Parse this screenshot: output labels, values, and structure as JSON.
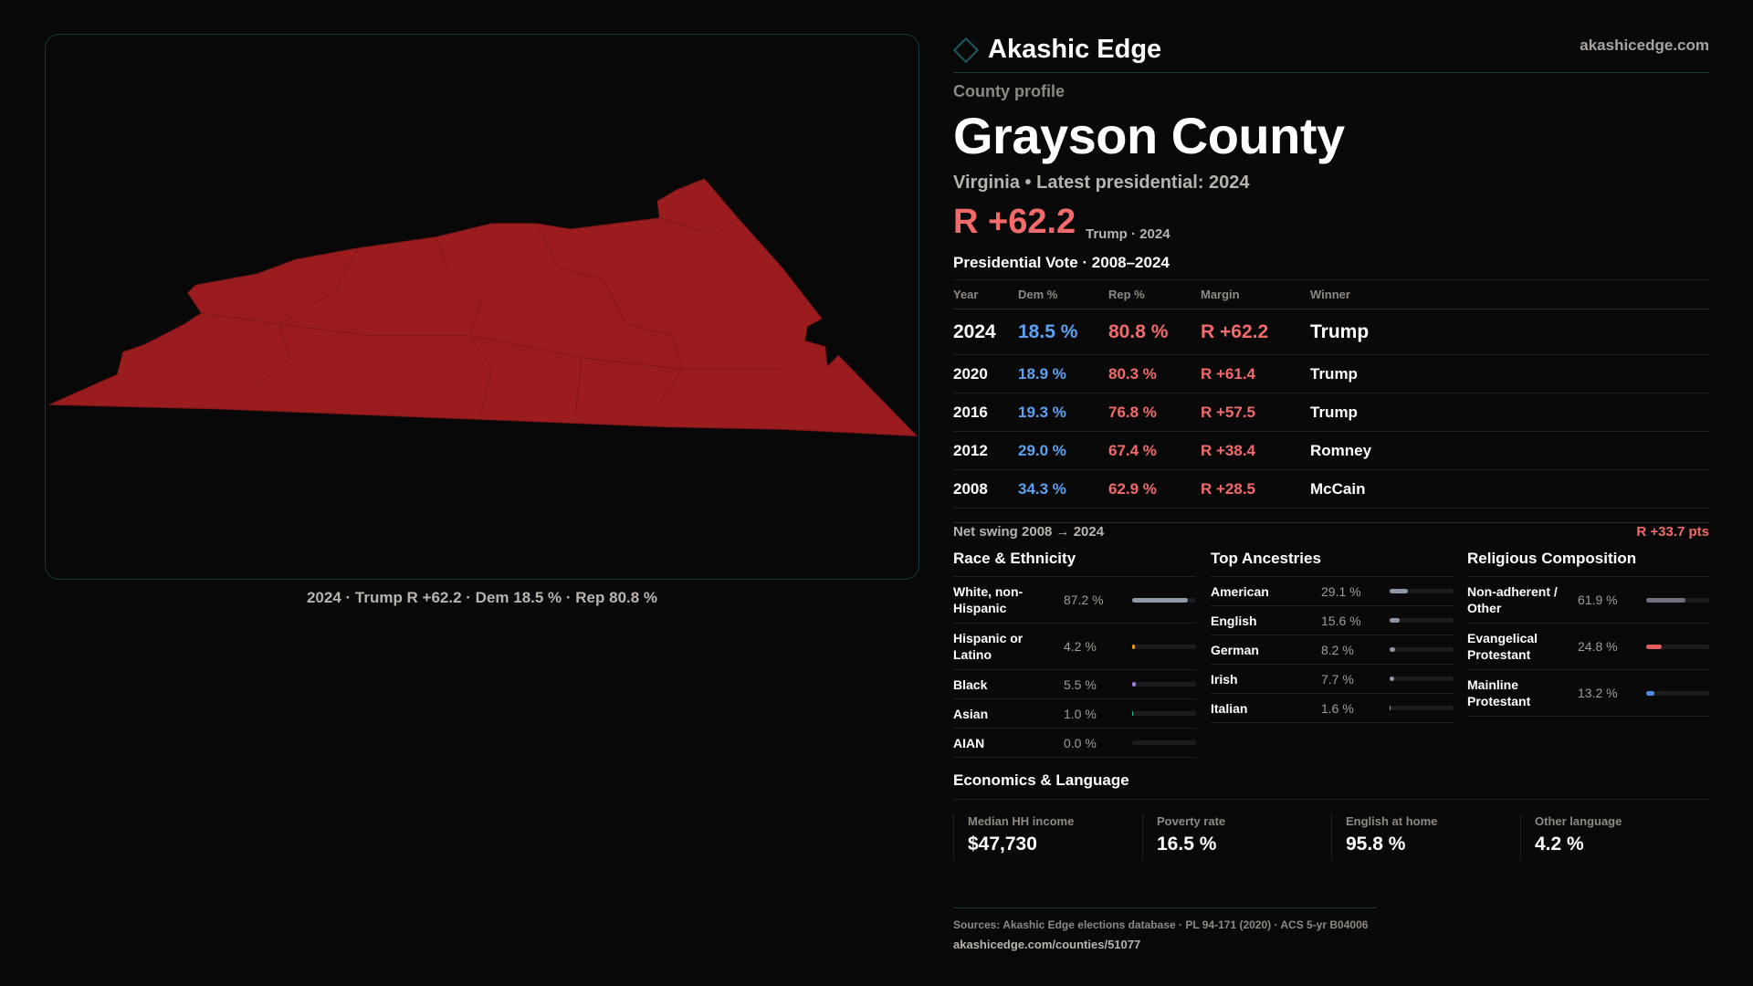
{
  "brand": {
    "name": "Akashic Edge",
    "site": "akashicedge.com"
  },
  "map": {
    "caption": "2024 · Trump R +62.2 · Dem 18.5 % · Rep 80.8 %",
    "fill": "#9b1c1f"
  },
  "profile": {
    "kicker": "County profile",
    "title": "Grayson County",
    "subtitle": "Virginia • Latest presidential: 2024",
    "margin": "R +62.2",
    "margin_sub": "Trump · 2024"
  },
  "pres": {
    "title": "Presidential Vote · 2008–2024",
    "headers": [
      "Year",
      "Dem %",
      "Rep %",
      "Margin",
      "Winner"
    ],
    "rows": [
      [
        "2024",
        "18.5 %",
        "80.8 %",
        "R +62.2",
        "Trump"
      ],
      [
        "2020",
        "18.9 %",
        "80.3 %",
        "R +61.4",
        "Trump"
      ],
      [
        "2016",
        "19.3 %",
        "76.8 %",
        "R +57.5",
        "Trump"
      ],
      [
        "2012",
        "29.0 %",
        "67.4 %",
        "R +38.4",
        "Romney"
      ],
      [
        "2008",
        "34.3 %",
        "62.9 %",
        "R +28.5",
        "McCain"
      ]
    ]
  },
  "swing": {
    "label": "Net swing 2008 → 2024",
    "value": "R +33.7 pts"
  },
  "race": {
    "title": "Race & Ethnicity",
    "items": [
      {
        "label": "White, non-Hispanic",
        "value": "87.2 %",
        "pct": 87.2,
        "color": "#8d97a8"
      },
      {
        "label": "Hispanic or Latino",
        "value": "4.2 %",
        "pct": 4.2,
        "color": "#e59a1c"
      },
      {
        "label": "Black",
        "value": "5.5 %",
        "pct": 5.5,
        "color": "#9a7ae0"
      },
      {
        "label": "Asian",
        "value": "1.0 %",
        "pct": 1.0,
        "color": "#3ab89a"
      },
      {
        "label": "AIAN",
        "value": "0.0 %",
        "pct": 0,
        "color": "#888"
      }
    ]
  },
  "ancestry": {
    "title": "Top Ancestries",
    "items": [
      {
        "label": "American",
        "value": "29.1 %",
        "pct": 29.1,
        "color": "#8d97a8"
      },
      {
        "label": "English",
        "value": "15.6 %",
        "pct": 15.6,
        "color": "#8d97a8"
      },
      {
        "label": "German",
        "value": "8.2 %",
        "pct": 8.2,
        "color": "#8d97a8"
      },
      {
        "label": "Irish",
        "value": "7.7 %",
        "pct": 7.7,
        "color": "#8d97a8"
      },
      {
        "label": "Italian",
        "value": "1.6 %",
        "pct": 1.6,
        "color": "#8d97a8"
      }
    ]
  },
  "religion": {
    "title": "Religious Composition",
    "items": [
      {
        "label": "Non-adherent / Other",
        "value": "61.9 %",
        "pct": 61.9,
        "color": "#6e7180"
      },
      {
        "label": "Evangelical Protestant",
        "value": "24.8 %",
        "pct": 24.8,
        "color": "#e35d5d"
      },
      {
        "label": "Mainline Protestant",
        "value": "13.2 %",
        "pct": 13.2,
        "color": "#4f8ee0"
      }
    ]
  },
  "econ": {
    "title": "Economics & Language",
    "cards": [
      {
        "label": "Median HH income",
        "value": "$47,730"
      },
      {
        "label": "Poverty rate",
        "value": "16.5 %"
      },
      {
        "label": "English at home",
        "value": "95.8 %"
      },
      {
        "label": "Other language",
        "value": "4.2 %"
      }
    ]
  },
  "footer": {
    "sources": "Sources: Akashic Edge elections database · PL 94-171 (2020) · ACS 5-yr B04006",
    "url": "akashicedge.com/counties/51077"
  }
}
